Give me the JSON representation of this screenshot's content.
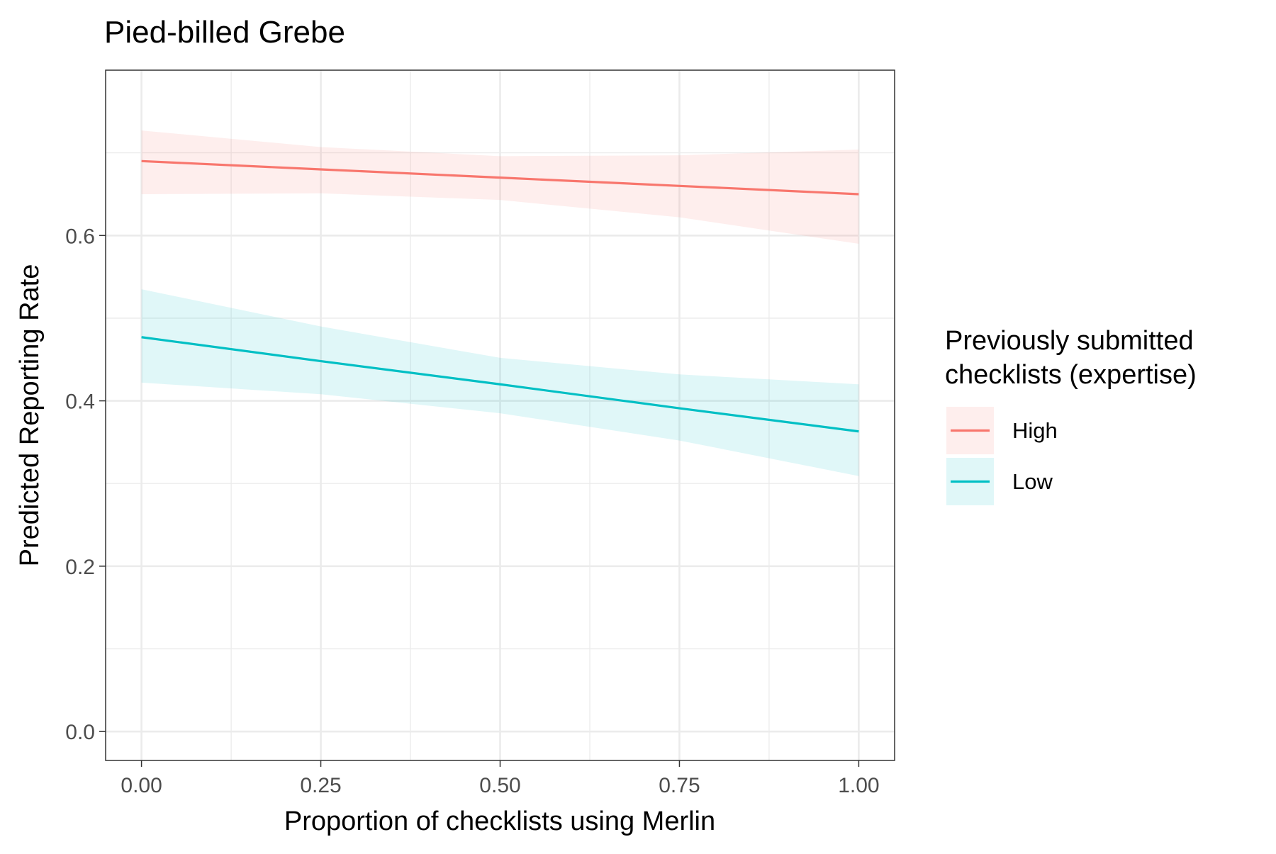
{
  "chart_data": {
    "type": "line",
    "title": "Pied-billed Grebe",
    "xlabel": "Proportion of checklists using Merlin",
    "ylabel": "Predicted Reporting Rate",
    "xlim": [
      -0.05,
      1.05
    ],
    "ylim": [
      -0.035,
      0.8
    ],
    "x_ticks": [
      0,
      0.25,
      0.5,
      0.75,
      1
    ],
    "x_tick_labels": [
      "0.00",
      "0.25",
      "0.50",
      "0.75",
      "1.00"
    ],
    "y_ticks": [
      0,
      0.2,
      0.4,
      0.6
    ],
    "y_tick_labels": [
      "0.0",
      "0.2",
      "0.4",
      "0.6"
    ],
    "grid": true,
    "legend": {
      "title_lines": [
        "Previously submitted",
        "checklists (expertise)"
      ],
      "placement": "right"
    },
    "series": [
      {
        "name": "High",
        "color": "#F8766D",
        "x": [
          0,
          0.25,
          0.5,
          0.75,
          1
        ],
        "y": [
          0.69,
          0.68,
          0.67,
          0.66,
          0.65
        ],
        "lower": [
          0.65,
          0.651,
          0.643,
          0.622,
          0.59
        ],
        "upper": [
          0.727,
          0.707,
          0.696,
          0.697,
          0.704
        ]
      },
      {
        "name": "Low",
        "color": "#00BFC4",
        "x": [
          0,
          0.25,
          0.5,
          0.75,
          1
        ],
        "y": [
          0.477,
          0.448,
          0.42,
          0.391,
          0.363
        ],
        "lower": [
          0.422,
          0.408,
          0.385,
          0.352,
          0.309
        ],
        "upper": [
          0.535,
          0.49,
          0.452,
          0.432,
          0.42
        ]
      }
    ]
  }
}
